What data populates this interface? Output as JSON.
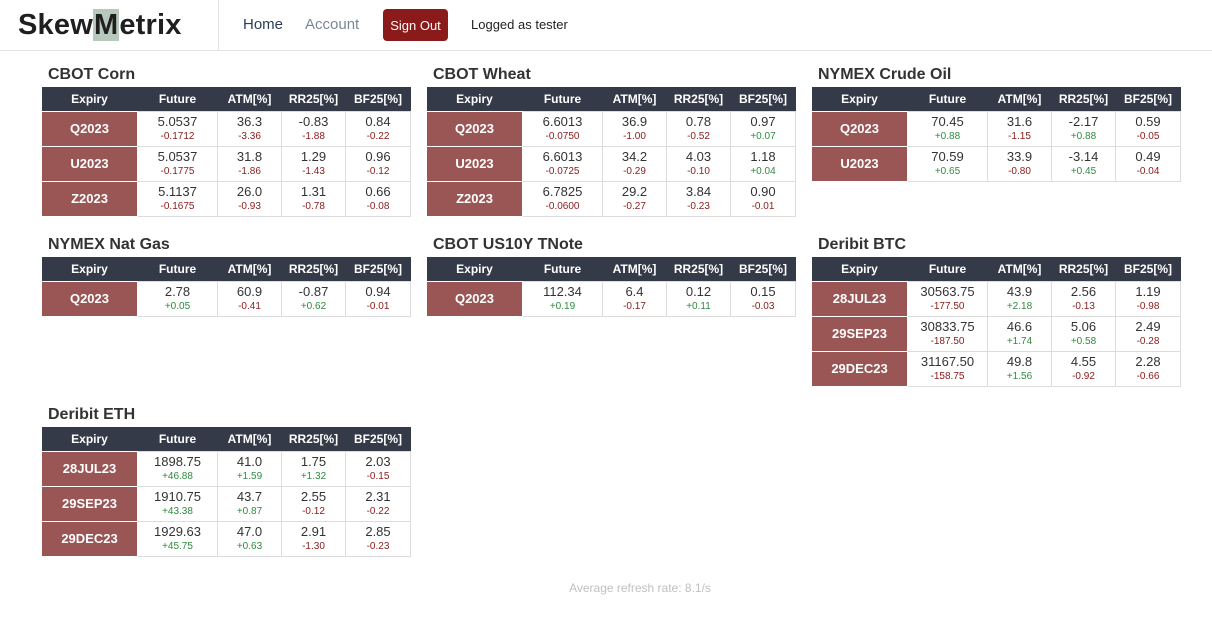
{
  "nav": {
    "brand_pre": "Skew",
    "brand_hl": "M",
    "brand_post": "etrix",
    "home": "Home",
    "account": "Account",
    "signout": "Sign Out",
    "logged": "Logged as tester"
  },
  "columns": [
    "Expiry",
    "Future",
    "ATM[%]",
    "RR25[%]",
    "BF25[%]"
  ],
  "colors": {
    "header": "#343a48",
    "expiry": "#9a5555",
    "negative": "#8b1a1a",
    "positive": "#2e8b3e",
    "signout": "#8b1a1a"
  },
  "panels": [
    {
      "title": "CBOT Corn",
      "rows": [
        {
          "expiry": "Q2023",
          "cells": [
            [
              "5.0537",
              "-0.1712"
            ],
            [
              "36.3",
              "-3.36"
            ],
            [
              "-0.83",
              "-1.88"
            ],
            [
              "0.84",
              "-0.22"
            ]
          ]
        },
        {
          "expiry": "U2023",
          "cells": [
            [
              "5.0537",
              "-0.1775"
            ],
            [
              "31.8",
              "-1.86"
            ],
            [
              "1.29",
              "-1.43"
            ],
            [
              "0.96",
              "-0.12"
            ]
          ]
        },
        {
          "expiry": "Z2023",
          "cells": [
            [
              "5.1137",
              "-0.1675"
            ],
            [
              "26.0",
              "-0.93"
            ],
            [
              "1.31",
              "-0.78"
            ],
            [
              "0.66",
              "-0.08"
            ]
          ]
        }
      ]
    },
    {
      "title": "CBOT Wheat",
      "rows": [
        {
          "expiry": "Q2023",
          "cells": [
            [
              "6.6013",
              "-0.0750"
            ],
            [
              "36.9",
              "-1.00"
            ],
            [
              "0.78",
              "-0.52"
            ],
            [
              "0.97",
              "+0.07"
            ]
          ]
        },
        {
          "expiry": "U2023",
          "cells": [
            [
              "6.6013",
              "-0.0725"
            ],
            [
              "34.2",
              "-0.29"
            ],
            [
              "4.03",
              "-0.10"
            ],
            [
              "1.18",
              "+0.04"
            ]
          ]
        },
        {
          "expiry": "Z2023",
          "cells": [
            [
              "6.7825",
              "-0.0600"
            ],
            [
              "29.2",
              "-0.27"
            ],
            [
              "3.84",
              "-0.23"
            ],
            [
              "0.90",
              "-0.01"
            ]
          ]
        }
      ]
    },
    {
      "title": "NYMEX Crude Oil",
      "rows": [
        {
          "expiry": "Q2023",
          "cells": [
            [
              "70.45",
              "+0.88"
            ],
            [
              "31.6",
              "-1.15"
            ],
            [
              "-2.17",
              "+0.88"
            ],
            [
              "0.59",
              "-0.05"
            ]
          ]
        },
        {
          "expiry": "U2023",
          "cells": [
            [
              "70.59",
              "+0.65"
            ],
            [
              "33.9",
              "-0.80"
            ],
            [
              "-3.14",
              "+0.45"
            ],
            [
              "0.49",
              "-0.04"
            ]
          ]
        }
      ]
    },
    {
      "title": "NYMEX Nat Gas",
      "rows": [
        {
          "expiry": "Q2023",
          "cells": [
            [
              "2.78",
              "+0.05"
            ],
            [
              "60.9",
              "-0.41"
            ],
            [
              "-0.87",
              "+0.62"
            ],
            [
              "0.94",
              "-0.01"
            ]
          ]
        }
      ]
    },
    {
      "title": "CBOT US10Y TNote",
      "rows": [
        {
          "expiry": "Q2023",
          "cells": [
            [
              "112.34",
              "+0.19"
            ],
            [
              "6.4",
              "-0.17"
            ],
            [
              "0.12",
              "+0.11"
            ],
            [
              "0.15",
              "-0.03"
            ]
          ]
        }
      ]
    },
    {
      "title": "Deribit BTC",
      "rows": [
        {
          "expiry": "28JUL23",
          "cells": [
            [
              "30563.75",
              "-177.50"
            ],
            [
              "43.9",
              "+2.18"
            ],
            [
              "2.56",
              "-0.13"
            ],
            [
              "1.19",
              "-0.98"
            ]
          ]
        },
        {
          "expiry": "29SEP23",
          "cells": [
            [
              "30833.75",
              "-187.50"
            ],
            [
              "46.6",
              "+1.74"
            ],
            [
              "5.06",
              "+0.58"
            ],
            [
              "2.49",
              "-0.28"
            ]
          ]
        },
        {
          "expiry": "29DEC23",
          "cells": [
            [
              "31167.50",
              "-158.75"
            ],
            [
              "49.8",
              "+1.56"
            ],
            [
              "4.55",
              "-0.92"
            ],
            [
              "2.28",
              "-0.66"
            ]
          ]
        }
      ]
    },
    {
      "title": "Deribit ETH",
      "rows": [
        {
          "expiry": "28JUL23",
          "cells": [
            [
              "1898.75",
              "+46.88"
            ],
            [
              "41.0",
              "+1.59"
            ],
            [
              "1.75",
              "+1.32"
            ],
            [
              "2.03",
              "-0.15"
            ]
          ]
        },
        {
          "expiry": "29SEP23",
          "cells": [
            [
              "1910.75",
              "+43.38"
            ],
            [
              "43.7",
              "+0.87"
            ],
            [
              "2.55",
              "-0.12"
            ],
            [
              "2.31",
              "-0.22"
            ]
          ]
        },
        {
          "expiry": "29DEC23",
          "cells": [
            [
              "1929.63",
              "+45.75"
            ],
            [
              "47.0",
              "+0.63"
            ],
            [
              "2.91",
              "-1.30"
            ],
            [
              "2.85",
              "-0.23"
            ]
          ]
        }
      ]
    }
  ],
  "footer": "Average refresh rate: 8.1/s"
}
